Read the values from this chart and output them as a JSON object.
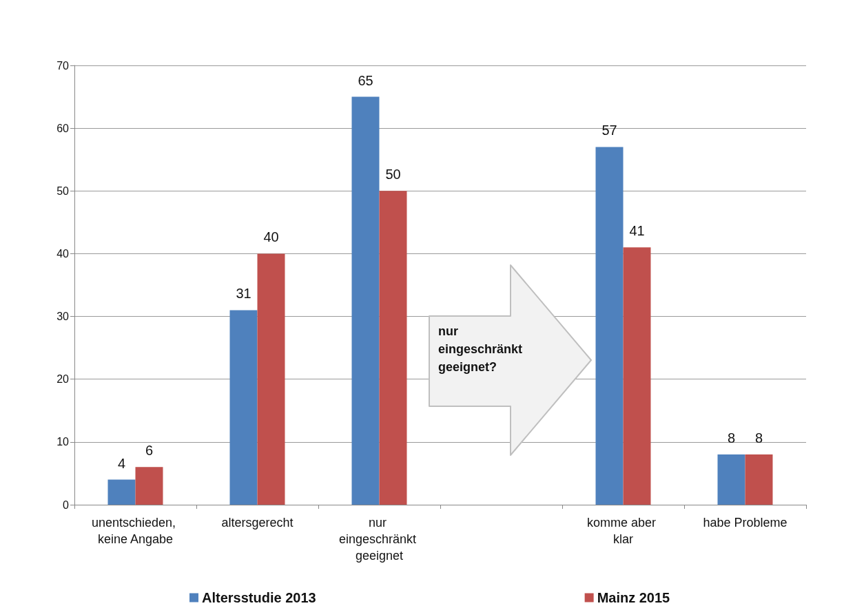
{
  "chart_data": {
    "type": "bar",
    "categories": [
      "unentschieden, keine Angabe",
      "altersgerecht",
      "nur eingeschränkt geeignet",
      null,
      "komme aber klar",
      "habe Probleme"
    ],
    "series": [
      {
        "name": "Altersstudie 2013",
        "color": "#4f81bd",
        "values": [
          4,
          31,
          65,
          null,
          57,
          8
        ]
      },
      {
        "name": "Mainz 2015",
        "color": "#c0504d",
        "values": [
          6,
          40,
          50,
          null,
          41,
          8
        ]
      }
    ],
    "ylim": [
      0,
      70
    ],
    "yticks": [
      0,
      10,
      20,
      30,
      40,
      50,
      60,
      70
    ],
    "grid": "y",
    "legend": "bottom",
    "data_labels": true,
    "annotations": [
      "nur eingeschränkt geeignet?"
    ]
  }
}
